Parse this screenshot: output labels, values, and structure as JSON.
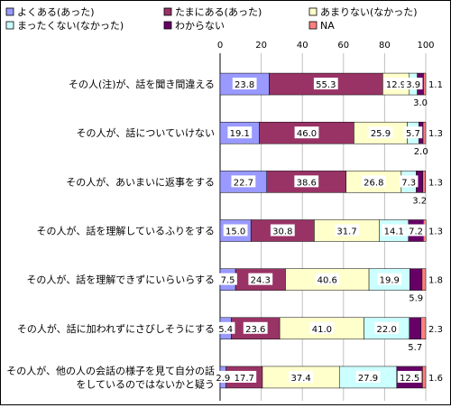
{
  "chart_data": {
    "type": "bar",
    "stacked": "percent",
    "orientation": "horizontal",
    "xlim": [
      0,
      100
    ],
    "x_ticks": [
      "0",
      "20",
      "40",
      "60",
      "80",
      "100"
    ],
    "grid": true,
    "legend_position": "top",
    "categories": [
      "その人(注)が、話を聞き間違える",
      "その人が、話についていけない",
      "その人が、あいまいに返事をする",
      "その人が、話を理解しているふりをする",
      "その人が、話を理解できずにいらいらする",
      "その人が、話に加われずにさびしそうにする",
      "その人が、他の人の会話の様子を見て自分の話をしているのではないかと疑う"
    ],
    "series": [
      {
        "name": "よくある(あった)",
        "color": "#9999ff",
        "values": [
          23.8,
          19.1,
          22.7,
          15.0,
          7.5,
          5.4,
          2.9
        ]
      },
      {
        "name": "たまにある(あった)",
        "color": "#993366",
        "values": [
          55.3,
          46.0,
          38.6,
          30.8,
          24.3,
          23.6,
          17.7
        ]
      },
      {
        "name": "あまりない(なかった)",
        "color": "#ffffcc",
        "values": [
          12.9,
          25.9,
          26.8,
          31.7,
          40.6,
          41.0,
          37.4
        ]
      },
      {
        "name": "まったくない(なかった)",
        "color": "#ccffff",
        "values": [
          3.9,
          5.7,
          7.3,
          14.1,
          19.9,
          22.0,
          27.9
        ]
      },
      {
        "name": "わからない",
        "color": "#660066",
        "values": [
          3.0,
          2.0,
          3.2,
          7.2,
          5.9,
          5.7,
          12.5
        ]
      },
      {
        "name": "NA",
        "color": "#ff8080",
        "values": [
          1.1,
          1.3,
          1.3,
          1.3,
          1.8,
          2.3,
          1.6
        ]
      }
    ]
  }
}
